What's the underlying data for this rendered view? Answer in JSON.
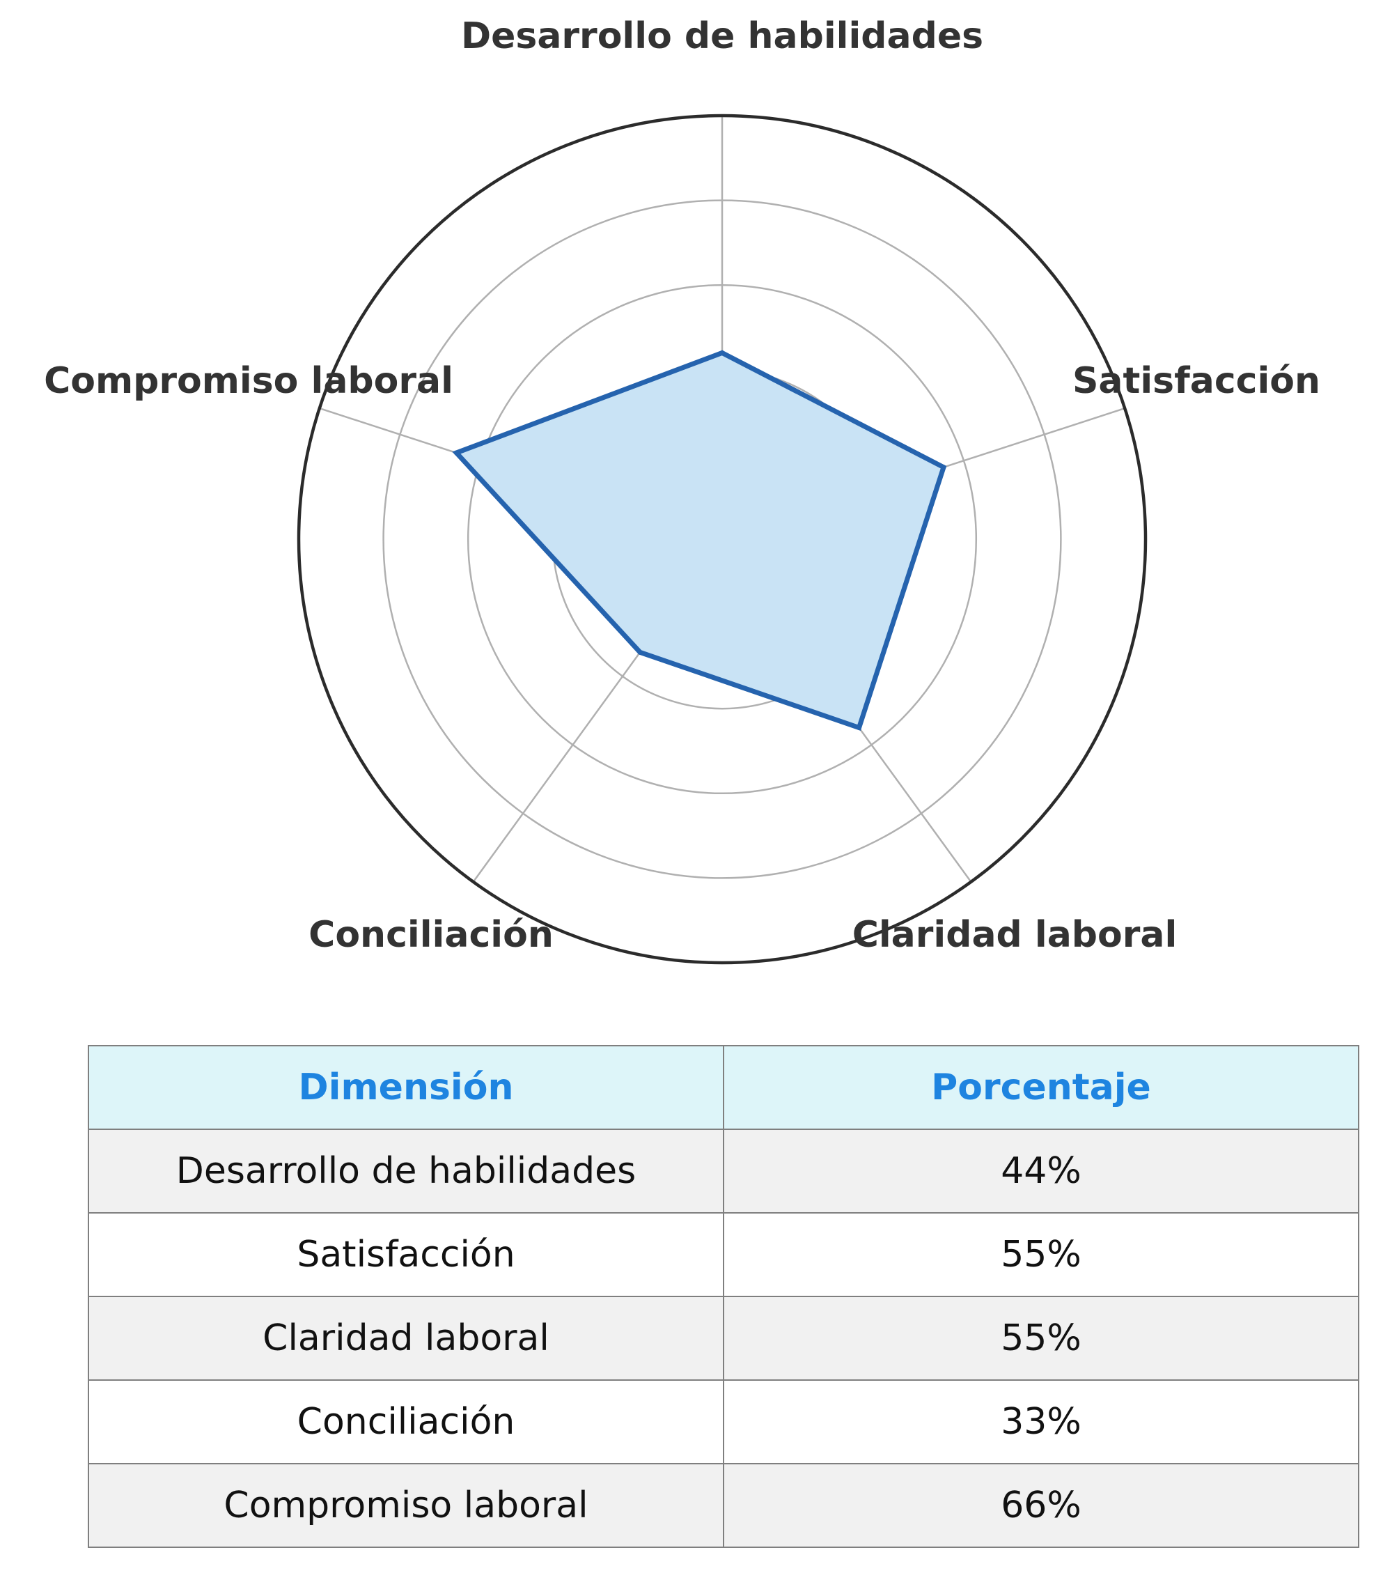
{
  "chart_data": {
    "type": "radar",
    "axes": [
      "Desarrollo de habilidades",
      "Satisfacción",
      "Claridad laboral",
      "Conciliación",
      "Compromiso laboral"
    ],
    "values": [
      44,
      55,
      55,
      33,
      66
    ],
    "rlim": [
      0,
      100
    ],
    "grid_rings": [
      20,
      40,
      60,
      80
    ],
    "colors": {
      "line": "#2563ae",
      "fill": "#c9e3f5",
      "grid": "#b0b0b0",
      "outer": "#2b2b2b"
    }
  },
  "table": {
    "headers": [
      "Dimensión",
      "Porcentaje"
    ],
    "rows": [
      [
        "Desarrollo de habilidades",
        "44%"
      ],
      [
        "Satisfacción",
        "55%"
      ],
      [
        "Claridad laboral",
        "55%"
      ],
      [
        "Conciliación",
        "33%"
      ],
      [
        "Compromiso laboral",
        "66%"
      ]
    ]
  }
}
